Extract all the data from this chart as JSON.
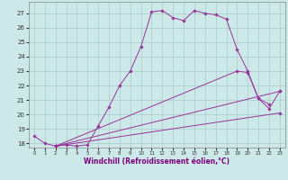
{
  "xlabel": "Windchill (Refroidissement éolien,°C)",
  "bg_color": "#cce8e8",
  "grid_color": "#aacccc",
  "line_color": "#993399",
  "xlim": [
    -0.5,
    23.5
  ],
  "ylim": [
    17.7,
    27.8
  ],
  "yticks": [
    18,
    19,
    20,
    21,
    22,
    23,
    24,
    25,
    26,
    27
  ],
  "xticks": [
    0,
    1,
    2,
    3,
    4,
    5,
    6,
    7,
    8,
    9,
    10,
    11,
    12,
    13,
    14,
    15,
    16,
    17,
    18,
    19,
    20,
    21,
    22,
    23
  ],
  "line1_x": [
    0,
    1,
    2,
    3,
    4,
    5,
    6,
    7,
    8,
    9,
    10,
    11,
    12,
    13,
    14,
    15,
    16,
    17,
    18,
    19,
    20,
    21,
    22
  ],
  "line1_y": [
    18.5,
    18.0,
    17.8,
    17.9,
    17.8,
    17.9,
    19.2,
    20.5,
    22.0,
    23.0,
    24.7,
    27.1,
    27.2,
    26.7,
    26.5,
    27.2,
    27.0,
    26.9,
    26.6,
    24.5,
    23.0,
    21.1,
    20.7
  ],
  "line2_x": [
    2,
    23
  ],
  "line2_y": [
    17.8,
    21.6
  ],
  "line3_x": [
    2,
    23
  ],
  "line3_y": [
    17.8,
    20.1
  ],
  "line4_x": [
    2,
    19,
    20,
    21,
    22,
    23
  ],
  "line4_y": [
    17.8,
    23.0,
    22.9,
    21.1,
    20.4,
    21.6
  ]
}
